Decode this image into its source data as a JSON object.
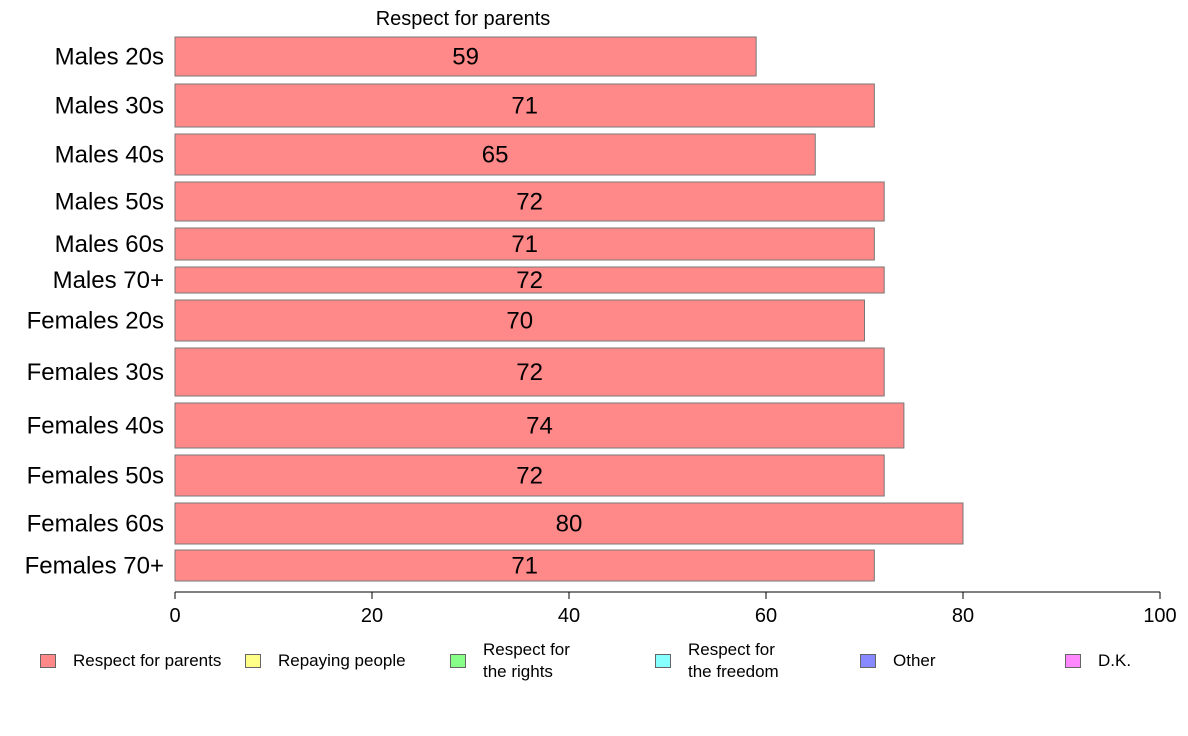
{
  "chart_data": {
    "type": "bar",
    "orientation": "horizontal",
    "title": "Respect for parents",
    "categories": [
      "Males 20s",
      "Males 30s",
      "Males 40s",
      "Males 50s",
      "Males 60s",
      "Males 70+",
      "Females 20s",
      "Females 30s",
      "Females 40s",
      "Females 50s",
      "Females 60s",
      "Females 70+"
    ],
    "series": [
      {
        "name": "Respect for parents",
        "color": "#ff8888",
        "values": [
          59,
          71,
          65,
          72,
          71,
          72,
          70,
          72,
          74,
          72,
          80,
          71
        ]
      }
    ],
    "xlim": [
      0,
      100
    ],
    "xticks": [
      0,
      20,
      40,
      60,
      80,
      100
    ],
    "grid": false,
    "legend": {
      "placement": "bottom",
      "entries": [
        {
          "label": "Respect for parents",
          "color": "#ff8888"
        },
        {
          "label": "Repaying people",
          "color": "#ffff88"
        },
        {
          "label": "Respect for\nthe rights",
          "color": "#88ff88"
        },
        {
          "label": "Respect for\nthe freedom",
          "color": "#88ffff"
        },
        {
          "label": "Other",
          "color": "#8888ff"
        },
        {
          "label": "D.K.",
          "color": "#ff88ff"
        }
      ]
    }
  }
}
